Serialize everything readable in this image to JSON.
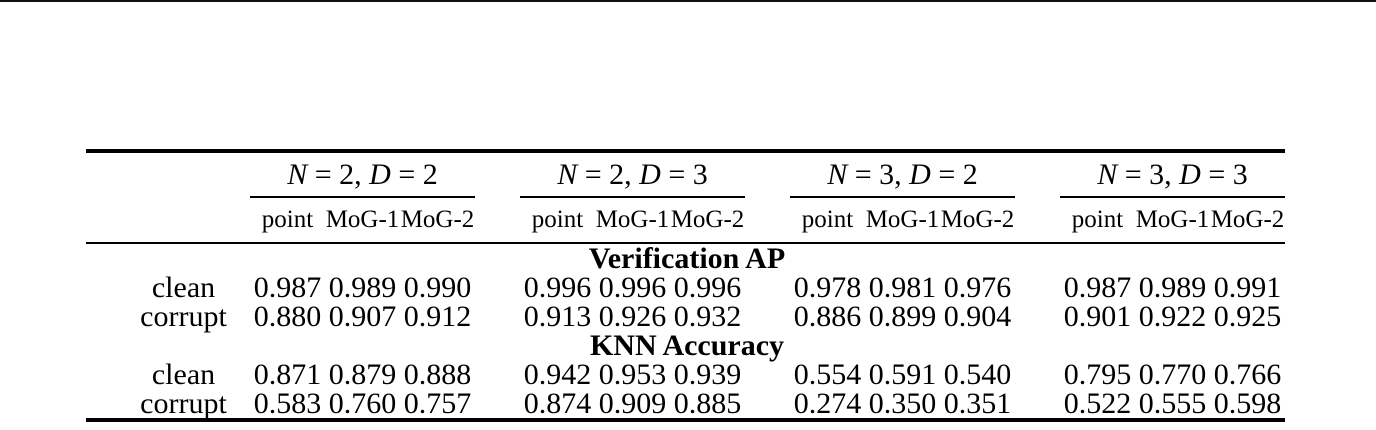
{
  "colors": {
    "background": "#ffffff",
    "text": "#000000",
    "rule": "#000000"
  },
  "table": {
    "groups": [
      {
        "v1": "N",
        "r1": " = 2, ",
        "v2": "D",
        "r2": " = 2",
        "cols": [
          "point",
          "MoG-1",
          "MoG-2"
        ]
      },
      {
        "v1": "N",
        "r1": " = 2, ",
        "v2": "D",
        "r2": " = 3",
        "cols": [
          "point",
          "MoG-1",
          "MoG-2"
        ]
      },
      {
        "v1": "N",
        "r1": " = 3, ",
        "v2": "D",
        "r2": " = 2",
        "cols": [
          "point",
          "MoG-1",
          "MoG-2"
        ]
      },
      {
        "v1": "N",
        "r1": " = 3, ",
        "v2": "D",
        "r2": " = 3",
        "cols": [
          "point",
          "MoG-1",
          "MoG-2"
        ]
      }
    ],
    "rows": [
      {
        "label": "Verification AP"
      },
      {
        "label": "clean",
        "values": [
          "0.987",
          "0.989",
          "0.990",
          "0.996",
          "0.996",
          "0.996",
          "0.978",
          "0.981",
          "0.976",
          "0.987",
          "0.989",
          "0.991"
        ]
      },
      {
        "label": "corrupt",
        "values": [
          "0.880",
          "0.907",
          "0.912",
          "0.913",
          "0.926",
          "0.932",
          "0.886",
          "0.899",
          "0.904",
          "0.901",
          "0.922",
          "0.925"
        ]
      },
      {
        "label": "KNN Accuracy"
      },
      {
        "label": "clean",
        "values": [
          "0.871",
          "0.879",
          "0.888",
          "0.942",
          "0.953",
          "0.939",
          "0.554",
          "0.591",
          "0.540",
          "0.795",
          "0.770",
          "0.766"
        ]
      },
      {
        "label": "corrupt",
        "values": [
          "0.583",
          "0.760",
          "0.757",
          "0.874",
          "0.909",
          "0.885",
          "0.274",
          "0.350",
          "0.351",
          "0.522",
          "0.555",
          "0.598"
        ]
      }
    ]
  }
}
